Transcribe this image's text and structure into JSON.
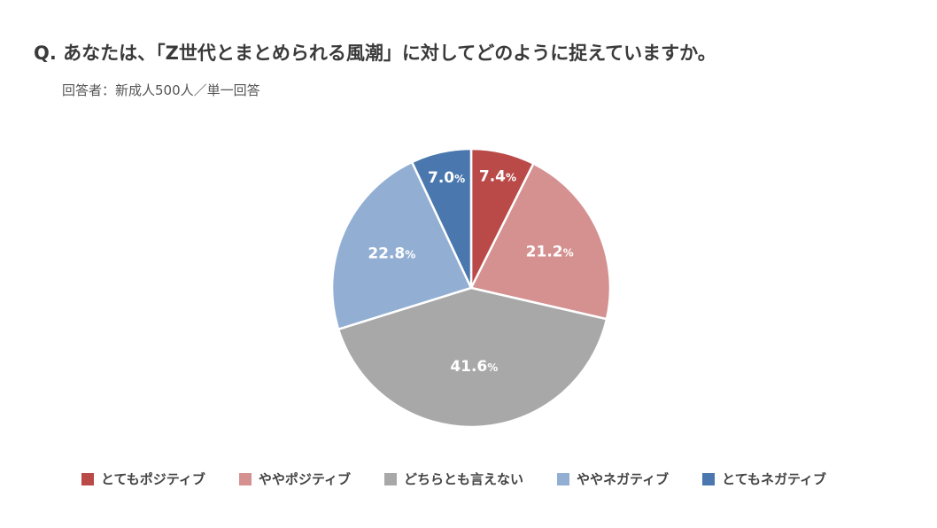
{
  "header": {
    "title": "Q. あなたは、「Z世代とまとめられる風潮」に対してどのように捉えていますか。",
    "subtitle": "回答者：新成人500人／単一回答"
  },
  "chart_data": {
    "type": "pie",
    "start_angle_deg": 0,
    "direction": "clockwise",
    "unit": "%",
    "slices": [
      {
        "label": "とてもポジティブ",
        "value": 7.4,
        "value_text": "7.4",
        "color": "#b94a48"
      },
      {
        "label": "ややポジティブ",
        "value": 21.2,
        "value_text": "21.2",
        "color": "#d49190"
      },
      {
        "label": "どちらとも言えない",
        "value": 41.6,
        "value_text": "41.6",
        "color": "#a8a8a8"
      },
      {
        "label": "ややネガティブ",
        "value": 22.8,
        "value_text": "22.8",
        "color": "#92afd3"
      },
      {
        "label": "とてもネガティブ",
        "value": 7.0,
        "value_text": "7.0",
        "color": "#4a77ad"
      }
    ],
    "legend_position": "bottom"
  }
}
